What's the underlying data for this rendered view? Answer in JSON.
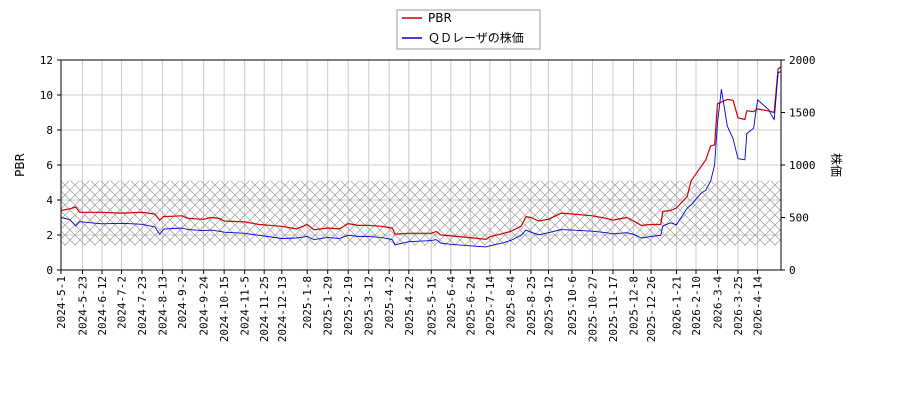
{
  "chart_data": {
    "type": "line",
    "title": "",
    "xlabel": "",
    "y_left_label": "PBR",
    "y_right_label": "株価",
    "y_left_lim": [
      0,
      12
    ],
    "y_left_ticks": [
      "0",
      "2",
      "4",
      "6",
      "8",
      "10",
      "12"
    ],
    "y_right_lim": [
      0,
      2000
    ],
    "y_right_ticks": [
      "0",
      "500",
      "1000",
      "1500",
      "2000"
    ],
    "x_range": [
      "2024-5-1",
      "2026-5-8"
    ],
    "x_ticks": [
      "2024-5-1",
      "2024-5-23",
      "2024-6-12",
      "2024-7-2",
      "2024-7-23",
      "2024-8-13",
      "2024-9-2",
      "2024-9-24",
      "2024-10-15",
      "2024-11-5",
      "2024-11-25",
      "2024-12-13",
      "2025-1-8",
      "2025-1-29",
      "2025-2-19",
      "2025-3-12",
      "2025-4-2",
      "2025-4-22",
      "2025-5-15",
      "2025-6-4",
      "2025-6-24",
      "2025-7-14",
      "2025-8-4",
      "2025-8-25",
      "2025-9-12",
      "2025-10-6",
      "2025-10-27",
      "2025-11-17",
      "2025-12-8",
      "2025-12-26",
      "2026-1-21",
      "2026-2-10",
      "2026-3-4",
      "2026-3-25",
      "2026-4-14"
    ],
    "grid": true,
    "legend_position": "top-center",
    "band": {
      "axis": "left",
      "from": 1.4,
      "to": 5.1,
      "pattern": "crosshatch"
    },
    "series": [
      {
        "name": "PBR",
        "axis": "left",
        "color": "#cc0000",
        "points": [
          [
            "2024-5-1",
            3.4
          ],
          [
            "2024-5-10",
            3.5
          ],
          [
            "2024-5-16",
            3.6
          ],
          [
            "2024-5-20",
            3.3
          ],
          [
            "2024-6-12",
            3.3
          ],
          [
            "2024-7-2",
            3.25
          ],
          [
            "2024-7-23",
            3.3
          ],
          [
            "2024-8-5",
            3.2
          ],
          [
            "2024-8-10",
            2.85
          ],
          [
            "2024-8-14",
            3.05
          ],
          [
            "2024-9-2",
            3.1
          ],
          [
            "2024-9-8",
            2.95
          ],
          [
            "2024-9-24",
            2.9
          ],
          [
            "2024-10-1",
            3.0
          ],
          [
            "2024-10-10",
            2.95
          ],
          [
            "2024-10-15",
            2.8
          ],
          [
            "2024-11-5",
            2.75
          ],
          [
            "2024-11-20",
            2.6
          ],
          [
            "2024-12-13",
            2.5
          ],
          [
            "2024-12-28",
            2.35
          ],
          [
            "2025-1-8",
            2.6
          ],
          [
            "2025-1-15",
            2.3
          ],
          [
            "2025-1-29",
            2.4
          ],
          [
            "2025-2-10",
            2.35
          ],
          [
            "2025-2-19",
            2.65
          ],
          [
            "2025-3-1",
            2.55
          ],
          [
            "2025-3-12",
            2.55
          ],
          [
            "2025-3-25",
            2.5
          ],
          [
            "2025-4-5",
            2.4
          ],
          [
            "2025-4-8",
            2.05
          ],
          [
            "2025-4-22",
            2.1
          ],
          [
            "2025-5-15",
            2.1
          ],
          [
            "2025-5-20",
            2.2
          ],
          [
            "2025-5-25",
            2.0
          ],
          [
            "2025-6-4",
            1.95
          ],
          [
            "2025-6-24",
            1.85
          ],
          [
            "2025-7-10",
            1.75
          ],
          [
            "2025-7-14",
            1.9
          ],
          [
            "2025-7-28",
            2.1
          ],
          [
            "2025-8-4",
            2.2
          ],
          [
            "2025-8-15",
            2.5
          ],
          [
            "2025-8-20",
            3.05
          ],
          [
            "2025-8-25",
            3.0
          ],
          [
            "2025-9-2",
            2.8
          ],
          [
            "2025-9-12",
            2.9
          ],
          [
            "2025-9-25",
            3.25
          ],
          [
            "2025-10-6",
            3.2
          ],
          [
            "2025-10-27",
            3.1
          ],
          [
            "2025-11-10",
            2.95
          ],
          [
            "2025-11-17",
            2.85
          ],
          [
            "2025-12-1",
            3.0
          ],
          [
            "2025-12-8",
            2.8
          ],
          [
            "2025-12-16",
            2.55
          ],
          [
            "2025-12-26",
            2.6
          ],
          [
            "2026-1-5",
            2.6
          ],
          [
            "2026-1-7",
            3.35
          ],
          [
            "2026-1-15",
            3.4
          ],
          [
            "2026-1-21",
            3.55
          ],
          [
            "2026-2-1",
            4.2
          ],
          [
            "2026-2-5",
            5.1
          ],
          [
            "2026-2-15",
            5.9
          ],
          [
            "2026-2-20",
            6.3
          ],
          [
            "2026-2-25",
            7.1
          ],
          [
            "2026-3-1",
            7.15
          ],
          [
            "2026-3-4",
            9.5
          ],
          [
            "2026-3-14",
            9.75
          ],
          [
            "2026-3-20",
            9.7
          ],
          [
            "2026-3-25",
            8.7
          ],
          [
            "2026-4-1",
            8.6
          ],
          [
            "2026-4-3",
            9.1
          ],
          [
            "2026-4-10",
            9.05
          ],
          [
            "2026-4-14",
            9.2
          ],
          [
            "2026-4-25",
            9.1
          ],
          [
            "2026-5-1",
            9.0
          ],
          [
            "2026-5-5",
            11.5
          ],
          [
            "2026-5-8",
            11.6
          ]
        ]
      },
      {
        "name": "ＱＤレーザの株価",
        "axis": "right",
        "color": "#0000cc",
        "points": [
          [
            "2024-5-1",
            500
          ],
          [
            "2024-5-10",
            480
          ],
          [
            "2024-5-16",
            420
          ],
          [
            "2024-5-20",
            460
          ],
          [
            "2024-6-12",
            440
          ],
          [
            "2024-7-2",
            445
          ],
          [
            "2024-7-23",
            435
          ],
          [
            "2024-8-5",
            410
          ],
          [
            "2024-8-10",
            340
          ],
          [
            "2024-8-14",
            390
          ],
          [
            "2024-9-2",
            400
          ],
          [
            "2024-9-8",
            385
          ],
          [
            "2024-9-24",
            375
          ],
          [
            "2024-10-1",
            380
          ],
          [
            "2024-10-10",
            370
          ],
          [
            "2024-10-15",
            360
          ],
          [
            "2024-11-5",
            350
          ],
          [
            "2024-11-20",
            330
          ],
          [
            "2024-12-13",
            300
          ],
          [
            "2024-12-28",
            305
          ],
          [
            "2025-1-8",
            320
          ],
          [
            "2025-1-15",
            290
          ],
          [
            "2025-1-29",
            310
          ],
          [
            "2025-2-10",
            300
          ],
          [
            "2025-2-19",
            330
          ],
          [
            "2025-3-1",
            320
          ],
          [
            "2025-3-12",
            320
          ],
          [
            "2025-3-25",
            310
          ],
          [
            "2025-4-5",
            290
          ],
          [
            "2025-4-8",
            240
          ],
          [
            "2025-4-22",
            270
          ],
          [
            "2025-5-15",
            280
          ],
          [
            "2025-5-20",
            290
          ],
          [
            "2025-5-25",
            255
          ],
          [
            "2025-6-4",
            245
          ],
          [
            "2025-6-24",
            230
          ],
          [
            "2025-7-10",
            220
          ],
          [
            "2025-7-14",
            230
          ],
          [
            "2025-7-28",
            260
          ],
          [
            "2025-8-4",
            280
          ],
          [
            "2025-8-15",
            330
          ],
          [
            "2025-8-20",
            380
          ],
          [
            "2025-8-25",
            360
          ],
          [
            "2025-9-2",
            335
          ],
          [
            "2025-9-12",
            355
          ],
          [
            "2025-9-25",
            385
          ],
          [
            "2025-10-6",
            380
          ],
          [
            "2025-10-27",
            370
          ],
          [
            "2025-11-10",
            355
          ],
          [
            "2025-11-17",
            345
          ],
          [
            "2025-12-1",
            355
          ],
          [
            "2025-12-8",
            340
          ],
          [
            "2025-12-16",
            305
          ],
          [
            "2025-12-26",
            320
          ],
          [
            "2026-1-5",
            330
          ],
          [
            "2026-1-7",
            420
          ],
          [
            "2026-1-15",
            450
          ],
          [
            "2026-1-21",
            430
          ],
          [
            "2026-2-1",
            590
          ],
          [
            "2026-2-5",
            620
          ],
          [
            "2026-2-15",
            730
          ],
          [
            "2026-2-20",
            760
          ],
          [
            "2026-2-25",
            850
          ],
          [
            "2026-3-1",
            1000
          ],
          [
            "2026-3-4",
            1400
          ],
          [
            "2026-3-8",
            1720
          ],
          [
            "2026-3-14",
            1370
          ],
          [
            "2026-3-20",
            1250
          ],
          [
            "2026-3-25",
            1060
          ],
          [
            "2026-4-1",
            1050
          ],
          [
            "2026-4-3",
            1300
          ],
          [
            "2026-4-10",
            1350
          ],
          [
            "2026-4-14",
            1620
          ],
          [
            "2026-4-25",
            1530
          ],
          [
            "2026-5-1",
            1430
          ],
          [
            "2026-5-5",
            1880
          ],
          [
            "2026-5-8",
            1890
          ]
        ]
      }
    ]
  }
}
